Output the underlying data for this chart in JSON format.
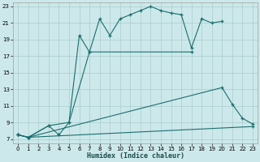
{
  "xlabel": "Humidex (Indice chaleur)",
  "bg_color": "#cce8ea",
  "grid_color": "#aacccc",
  "line_color": "#1a6e6e",
  "xlim": [
    -0.5,
    23.5
  ],
  "ylim": [
    6.5,
    23.5
  ],
  "xticks": [
    0,
    1,
    2,
    3,
    4,
    5,
    6,
    7,
    8,
    9,
    10,
    11,
    12,
    13,
    14,
    15,
    16,
    17,
    18,
    19,
    20,
    21,
    22,
    23
  ],
  "yticks": [
    7,
    9,
    11,
    13,
    15,
    17,
    19,
    21,
    23
  ],
  "line1_x": [
    0,
    1,
    3,
    4,
    5,
    6,
    7,
    8,
    9,
    10,
    11,
    12,
    13,
    14,
    15,
    16,
    17,
    18,
    19,
    20
  ],
  "line1_y": [
    7.5,
    7.2,
    8.6,
    7.5,
    9.0,
    19.5,
    17.5,
    21.5,
    19.5,
    21.5,
    22.0,
    22.5,
    23.0,
    22.5,
    22.2,
    22.0,
    18.0,
    21.5,
    21.0,
    21.2
  ],
  "line2_x": [
    0,
    1,
    3,
    5,
    7,
    17
  ],
  "line2_y": [
    7.5,
    7.2,
    8.6,
    9.0,
    17.5,
    17.5
  ],
  "line3_x": [
    0,
    1,
    20,
    21,
    22,
    23
  ],
  "line3_y": [
    7.5,
    7.2,
    13.2,
    11.2,
    9.5,
    8.8
  ],
  "line4_x": [
    0,
    1,
    23
  ],
  "line4_y": [
    7.5,
    7.2,
    8.5
  ]
}
